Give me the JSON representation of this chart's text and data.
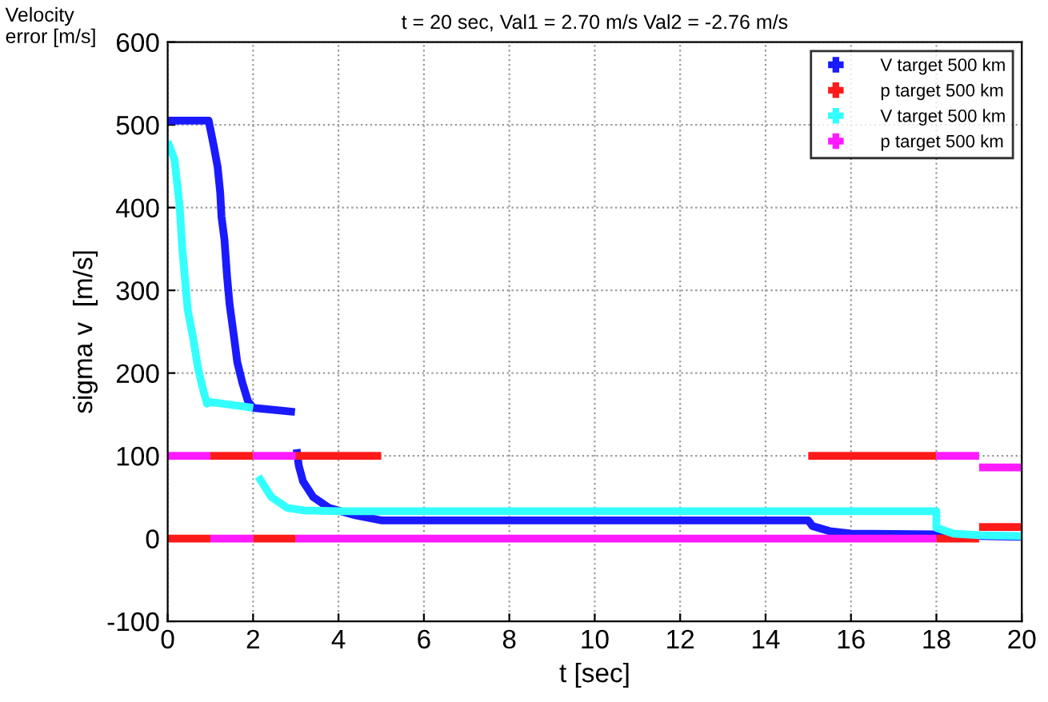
{
  "chart_data": {
    "type": "line",
    "title": "t = 20 sec, Val1 = 2.70 m/s Val2 = -2.76 m/s",
    "xlabel": "t [sec]",
    "ylabel": "sigma v  [m/s]",
    "annotations": [
      "Velocity\nerror [m/s]"
    ],
    "xlim": [
      0,
      20
    ],
    "ylim": [
      -100,
      600
    ],
    "xticks": [
      0,
      2,
      4,
      6,
      8,
      10,
      12,
      14,
      16,
      18,
      20
    ],
    "yticks": [
      -100,
      0,
      100,
      200,
      300,
      400,
      500,
      600
    ],
    "grid": true,
    "legend": "top right",
    "line_style": "solid",
    "marker": "none",
    "series": [
      {
        "name": "V target 500 km",
        "color": "#1a1aff",
        "x": [
          0,
          0.96,
          1.08,
          1.17,
          1.23,
          1.26,
          1.33,
          1.39,
          1.45,
          1.55,
          1.63,
          1.75,
          1.88,
          2.0,
          2.98
        ],
        "values": [
          505,
          505,
          474,
          449,
          418,
          389,
          361,
          317,
          283,
          245,
          213,
          188,
          166,
          158,
          153
        ]
      },
      {
        "color": "#1a1aff",
        "x": [
          3.02,
          3.07,
          3.17,
          3.41,
          3.78,
          4.4,
          5,
          15,
          15.1,
          15.5,
          16,
          18,
          19,
          20
        ],
        "values": [
          108,
          88,
          69,
          50,
          37,
          28,
          22,
          22,
          15,
          9,
          6,
          5,
          3,
          2
        ]
      },
      {
        "name": "p target 500 km",
        "color": "#ff1a1a",
        "x": [
          0,
          1
        ],
        "values": [
          0,
          0
        ]
      },
      {
        "color": "#ff1a1a",
        "x": [
          1,
          2
        ],
        "values": [
          100,
          100
        ]
      },
      {
        "color": "#ff1a1a",
        "x": [
          2,
          3
        ],
        "values": [
          0,
          0
        ]
      },
      {
        "color": "#ff1a1a",
        "x": [
          3,
          5
        ],
        "values": [
          100,
          100
        ]
      },
      {
        "color": "#ff1a1a",
        "x": [
          15,
          18
        ],
        "values": [
          100,
          100
        ]
      },
      {
        "color": "#ff1a1a",
        "x": [
          18,
          19
        ],
        "values": [
          0,
          0
        ]
      },
      {
        "color": "#ff1a1a",
        "x": [
          19,
          20
        ],
        "values": [
          14,
          14
        ]
      },
      {
        "name": "V target 500 km",
        "color": "#33ffff",
        "x": [
          0,
          0.16,
          0.28,
          0.34,
          0.47,
          0.59,
          0.71,
          0.83,
          0.92,
          1.0,
          2.0
        ],
        "values": [
          480,
          458,
          402,
          352,
          276,
          244,
          206,
          180,
          163,
          165,
          158
        ]
      },
      {
        "color": "#33ffff",
        "x": [
          2.12,
          2.43,
          2.8,
          3.2,
          4,
          18,
          18,
          18.4,
          19,
          20
        ],
        "values": [
          75,
          50,
          37,
          34,
          33,
          33,
          13,
          6,
          4,
          3
        ]
      },
      {
        "name": "p target 500 km",
        "color": "#ff1aff",
        "x": [
          0,
          1
        ],
        "values": [
          100,
          100
        ]
      },
      {
        "color": "#ff1aff",
        "x": [
          1,
          2
        ],
        "values": [
          0,
          0
        ]
      },
      {
        "color": "#ff1aff",
        "x": [
          2,
          3
        ],
        "values": [
          100,
          100
        ]
      },
      {
        "color": "#ff1aff",
        "x": [
          3,
          18
        ],
        "values": [
          0,
          0
        ]
      },
      {
        "color": "#ff1aff",
        "x": [
          18,
          19
        ],
        "values": [
          100,
          100
        ]
      },
      {
        "color": "#ff1aff",
        "x": [
          19,
          20
        ],
        "values": [
          86,
          86
        ]
      }
    ]
  }
}
